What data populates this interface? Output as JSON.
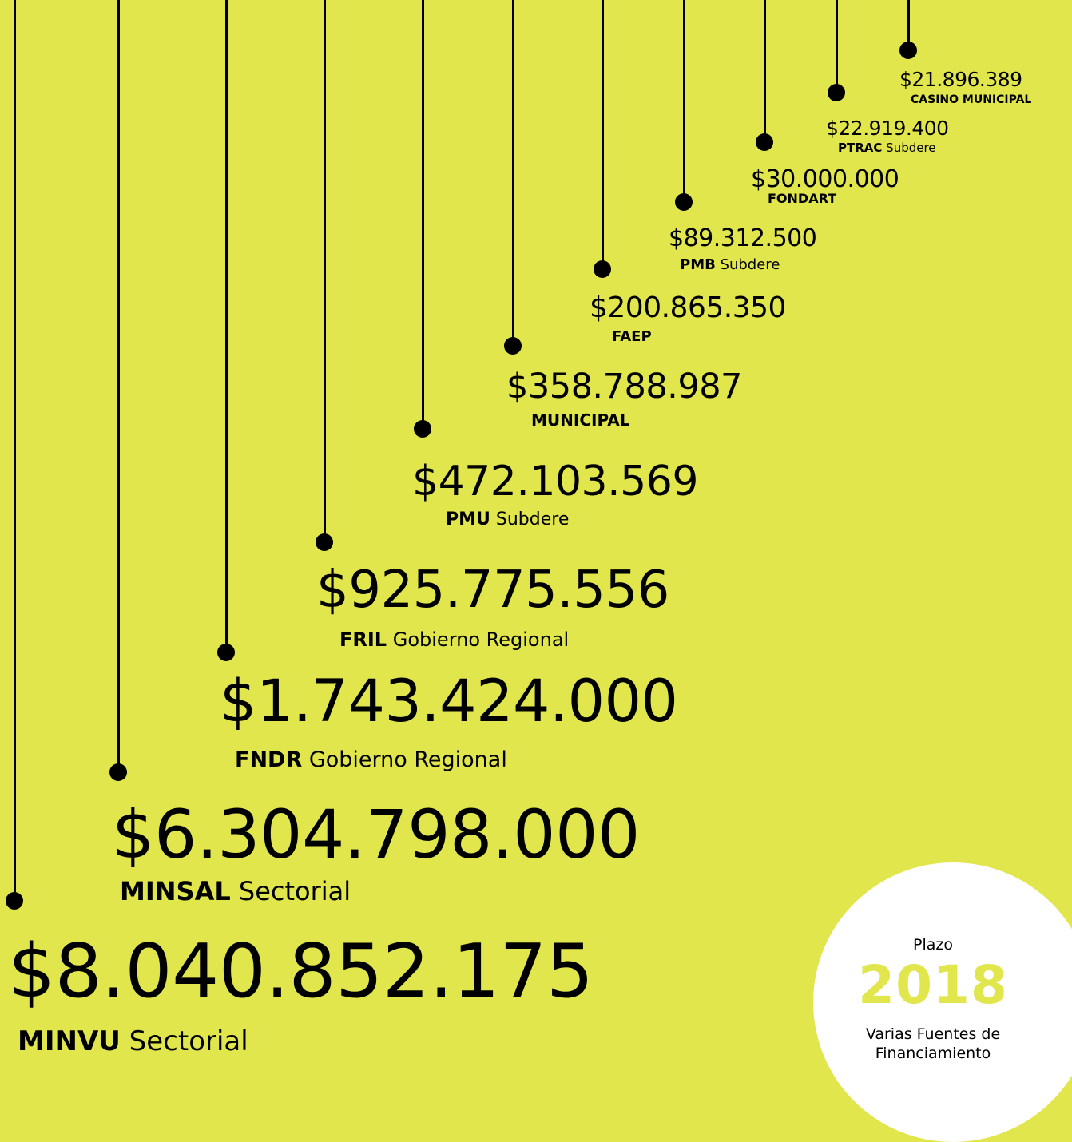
{
  "chart_data": {
    "type": "lollipop",
    "currency": "$",
    "series": [
      {
        "amount_label": "$8.040.852.175",
        "value": 8040852175,
        "source": "MINVU",
        "detail": "Sectorial"
      },
      {
        "amount_label": "$6.304.798.000",
        "value": 6304798000,
        "source": "MINSAL",
        "detail": "Sectorial"
      },
      {
        "amount_label": "$1.743.424.000",
        "value": 1743424000,
        "source": "FNDR",
        "detail": "Gobierno Regional"
      },
      {
        "amount_label": "$925.775.556",
        "value": 925775556,
        "source": "FRIL",
        "detail": "Gobierno Regional"
      },
      {
        "amount_label": "$472.103.569",
        "value": 472103569,
        "source": "PMU",
        "detail": "Subdere"
      },
      {
        "amount_label": "$358.788.987",
        "value": 358788987,
        "source": "MUNICIPAL",
        "detail": ""
      },
      {
        "amount_label": "$200.865.350",
        "value": 200865350,
        "source": "FAEP",
        "detail": ""
      },
      {
        "amount_label": "$89.312.500",
        "value": 89312500,
        "source": "PMB",
        "detail": "Subdere"
      },
      {
        "amount_label": "$30.000.000",
        "value": 30000000,
        "source": "FONDART",
        "detail": ""
      },
      {
        "amount_label": "$22.919.400",
        "value": 22919400,
        "source": "PTRAC",
        "detail": "Subdere"
      },
      {
        "amount_label": "$21.896.389",
        "value": 21896389,
        "source": "CASINO MUNICIPAL",
        "detail": ""
      }
    ]
  },
  "badge": {
    "label": "Plazo",
    "year": "2018",
    "description_line1": "Varias Fuentes de",
    "description_line2": "Financiamiento"
  },
  "colors": {
    "background": "#e1e64c",
    "ink": "#000000",
    "badge_fill": "#ffffff",
    "year_text": "#e1e64c"
  }
}
